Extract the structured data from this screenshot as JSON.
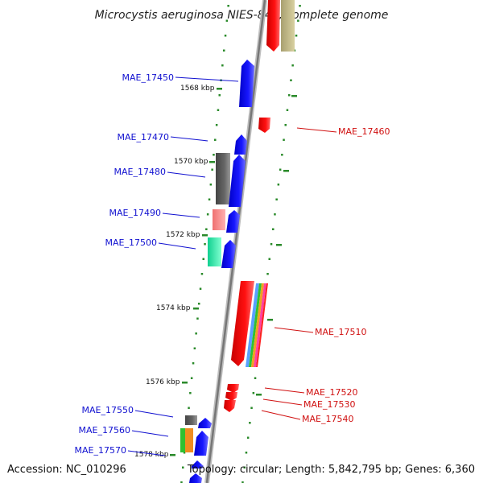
{
  "title": "Microcystis aeruginosa NIES-843, complete genome",
  "footer": {
    "accession": "Accession: NC_010296",
    "topology": "Topology: circular; Length: 5,842,795 bp; Genes: 6,360"
  },
  "ticks": [
    "1568 kbp",
    "1570 kbp",
    "1572 kbp",
    "1574 kbp",
    "1576 kbp",
    "1578 kbp"
  ],
  "genes_left": [
    "MAE_17450",
    "MAE_17470",
    "MAE_17480",
    "MAE_17490",
    "MAE_17500",
    "MAE_17550",
    "MAE_17560",
    "MAE_17570"
  ],
  "genes_right": [
    "MAE_17460",
    "MAE_17510",
    "MAE_17520",
    "MAE_17530",
    "MAE_17540"
  ],
  "colors": {
    "backbone": "#8a8a8a",
    "forward": "#0000ee",
    "reverse": "#ee0000",
    "tick": "#2a8a2a",
    "label_left": "#1010d0",
    "label_right": "#d01010"
  }
}
